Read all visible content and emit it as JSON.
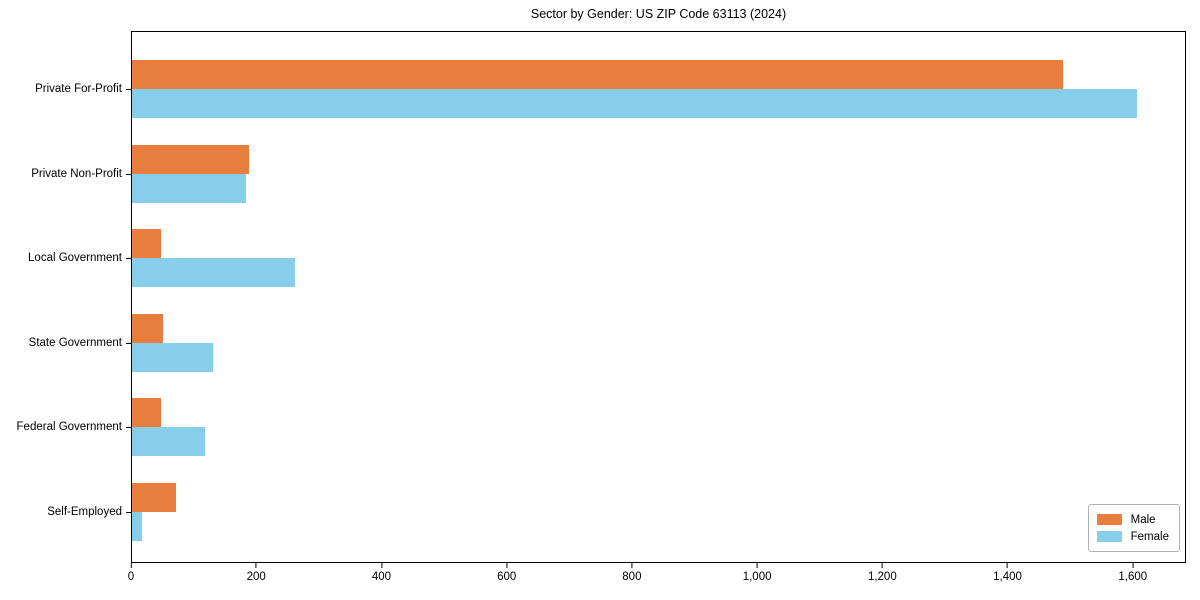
{
  "chart_data": {
    "type": "bar",
    "orientation": "horizontal",
    "title": "Sector by Gender: US ZIP Code 63113 (2024)",
    "categories": [
      "Private For-Profit",
      "Private Non-Profit",
      "Local Government",
      "State Government",
      "Federal Government",
      "Self-Employed"
    ],
    "series": [
      {
        "name": "Male",
        "color": "#e87d3d",
        "values": [
          1490,
          187,
          46,
          49,
          47,
          70
        ]
      },
      {
        "name": "Female",
        "color": "#87ceeb",
        "values": [
          1608,
          182,
          261,
          130,
          117,
          16
        ]
      }
    ],
    "xlabel": "",
    "ylabel": "",
    "xlim": [
      0,
      1685
    ],
    "x_ticks": [
      0,
      200,
      400,
      600,
      800,
      1000,
      1200,
      1400,
      1600
    ],
    "x_tick_labels": [
      "0",
      "200",
      "400",
      "600",
      "800",
      "1,000",
      "1,200",
      "1,400",
      "1,600"
    ],
    "grid": false,
    "legend_position": "lower right",
    "legend_labels": [
      "Male",
      "Female"
    ]
  },
  "colors": {
    "background": "#ffffff",
    "spine": "#000000",
    "text": "#000000",
    "male": "#e87d3d",
    "female": "#87ceeb",
    "legend_border": "#b0b0b0"
  }
}
